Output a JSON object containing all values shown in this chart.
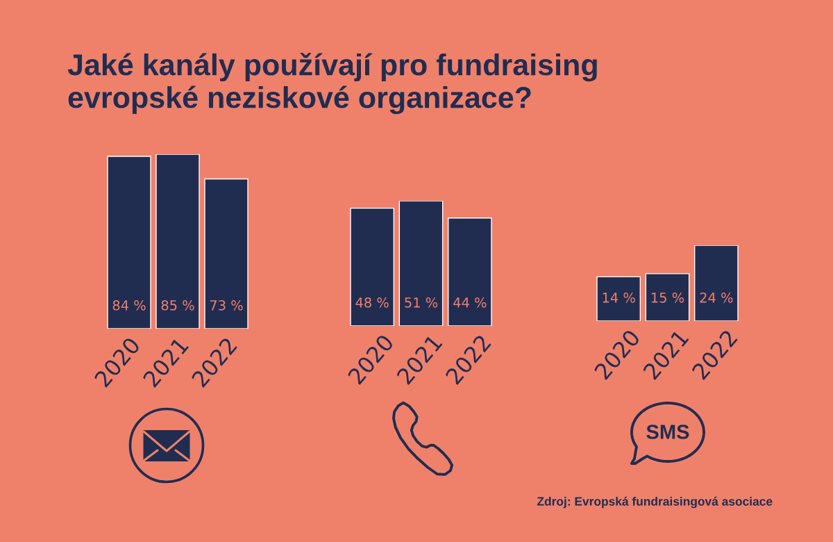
{
  "chart_data": [
    {
      "type": "bar",
      "title": "Jaké kanály používají pro fundraising\nevropské neziskové organizace?",
      "categories": [
        "2020",
        "2021",
        "2022"
      ],
      "values": [
        84,
        85,
        73
      ],
      "value_labels": [
        "84 %",
        "85 %",
        "73 %"
      ],
      "color": "#212c51",
      "tick_labels": "x"
    },
    {
      "type": "bar",
      "categories": [
        "2020",
        "2021",
        "2022"
      ],
      "values": [
        48,
        51,
        44
      ],
      "value_labels": [
        "48 %",
        "51 %",
        "44 %"
      ],
      "color": "#212c51",
      "tick_labels": "x"
    },
    {
      "type": "bar",
      "categories": [
        "2020",
        "2021",
        "2022"
      ],
      "values": [
        14,
        15,
        24
      ],
      "value_labels": [
        "14 %",
        "15 %",
        "24 %"
      ],
      "color": "#212c51",
      "tick_labels": "x",
      "xlabel": "SMS",
      "annotations": [
        "Zdroj: Evropská fundraisingová asociace"
      ]
    }
  ]
}
